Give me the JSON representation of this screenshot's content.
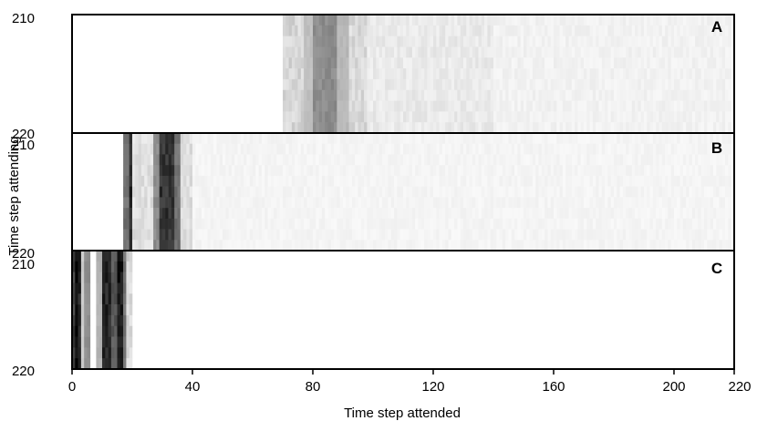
{
  "chart_data": {
    "type": "heatmap",
    "xlabel": "Time step attended",
    "ylabel": "Time step attending",
    "xlim": [
      0,
      220
    ],
    "x_ticks": [
      "0",
      "40",
      "80",
      "120",
      "160",
      "200",
      "220"
    ],
    "y_ticks": [
      "210",
      "220"
    ],
    "grid": false,
    "colormap": "grayscale (white = 0, black = max attention)",
    "panels": [
      {
        "label": "A",
        "rows_range": [
          210,
          220
        ],
        "nonzero_from": 70,
        "nonzero_to": 219,
        "bands": [
          {
            "from": 70,
            "to": 77,
            "intensity": 0.15
          },
          {
            "from": 77,
            "to": 80,
            "intensity": 0.25
          },
          {
            "from": 80,
            "to": 88,
            "intensity": 0.45
          },
          {
            "from": 88,
            "to": 92,
            "intensity": 0.28
          },
          {
            "from": 92,
            "to": 98,
            "intensity": 0.14
          },
          {
            "from": 98,
            "to": 140,
            "intensity": 0.08
          },
          {
            "from": 140,
            "to": 219,
            "intensity": 0.05
          }
        ]
      },
      {
        "label": "B",
        "rows_range": [
          210,
          220
        ],
        "nonzero_from": 17,
        "nonzero_to": 219,
        "bands": [
          {
            "from": 17,
            "to": 19,
            "intensity": 0.55
          },
          {
            "from": 19,
            "to": 20,
            "intensity": 0.85
          },
          {
            "from": 20,
            "to": 27,
            "intensity": 0.12
          },
          {
            "from": 27,
            "to": 29,
            "intensity": 0.45
          },
          {
            "from": 29,
            "to": 34,
            "intensity": 0.8
          },
          {
            "from": 34,
            "to": 36,
            "intensity": 0.55
          },
          {
            "from": 36,
            "to": 40,
            "intensity": 0.12
          },
          {
            "from": 40,
            "to": 219,
            "intensity": 0.04
          }
        ]
      },
      {
        "label": "C",
        "rows_range": [
          210,
          220
        ],
        "nonzero_from": 0,
        "nonzero_to": 20,
        "bands": [
          {
            "from": 0,
            "to": 1,
            "intensity": 0.75
          },
          {
            "from": 1,
            "to": 2,
            "intensity": 1.0
          },
          {
            "from": 2,
            "to": 3,
            "intensity": 0.85
          },
          {
            "from": 3,
            "to": 4,
            "intensity": 0.2
          },
          {
            "from": 4,
            "to": 6,
            "intensity": 0.45
          },
          {
            "from": 6,
            "to": 8,
            "intensity": 0.0
          },
          {
            "from": 8,
            "to": 10,
            "intensity": 0.3
          },
          {
            "from": 10,
            "to": 13,
            "intensity": 0.85
          },
          {
            "from": 13,
            "to": 15,
            "intensity": 0.65
          },
          {
            "from": 15,
            "to": 17,
            "intensity": 0.9
          },
          {
            "from": 17,
            "to": 18,
            "intensity": 0.55
          },
          {
            "from": 18,
            "to": 20,
            "intensity": 0.15
          }
        ]
      }
    ]
  }
}
